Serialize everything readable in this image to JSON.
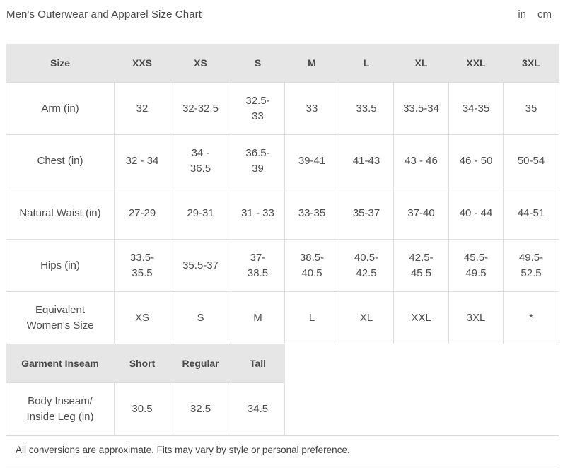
{
  "page": {
    "title": "Men's Outerwear and Apparel Size Chart"
  },
  "units": {
    "inches_label": "in",
    "cm_label": "cm"
  },
  "size_table": {
    "header": [
      "Size",
      "XXS",
      "XS",
      "S",
      "M",
      "L",
      "XL",
      "XXL",
      "3XL"
    ],
    "rows": [
      {
        "label": "Arm (in)",
        "values": [
          "32",
          "32-32.5",
          "32.5-33",
          "33",
          "33.5",
          "33.5-34",
          "34-35",
          "35"
        ]
      },
      {
        "label": "Chest (in)",
        "values": [
          "32 - 34",
          "34 - 36.5",
          "36.5-39",
          "39-41",
          "41-43",
          "43 - 46",
          "46 - 50",
          "50-54"
        ]
      },
      {
        "label": "Natural Waist (in)",
        "values": [
          "27-29",
          "29-31",
          "31 - 33",
          "33-35",
          "35-37",
          "37-40",
          "40 - 44",
          "44-51"
        ]
      },
      {
        "label": "Hips (in)",
        "values": [
          "33.5-35.5",
          "35.5-37",
          "37-38.5",
          "38.5-40.5",
          "40.5-42.5",
          "42.5-45.5",
          "45.5-49.5",
          "49.5-52.5"
        ]
      },
      {
        "label": "Equivalent Women's Size",
        "values": [
          "XS",
          "S",
          "M",
          "L",
          "XL",
          "XXL",
          "3XL",
          "*"
        ]
      }
    ]
  },
  "inseam_table": {
    "header": [
      "Garment Inseam",
      "Short",
      "Regular",
      "Tall"
    ],
    "rows": [
      {
        "label": "Body Inseam/ Inside Leg (in)",
        "values": [
          "30.5",
          "32.5",
          "34.5"
        ]
      }
    ]
  },
  "footnote": "All conversions are approximate. Fits may vary by style or personal preference."
}
